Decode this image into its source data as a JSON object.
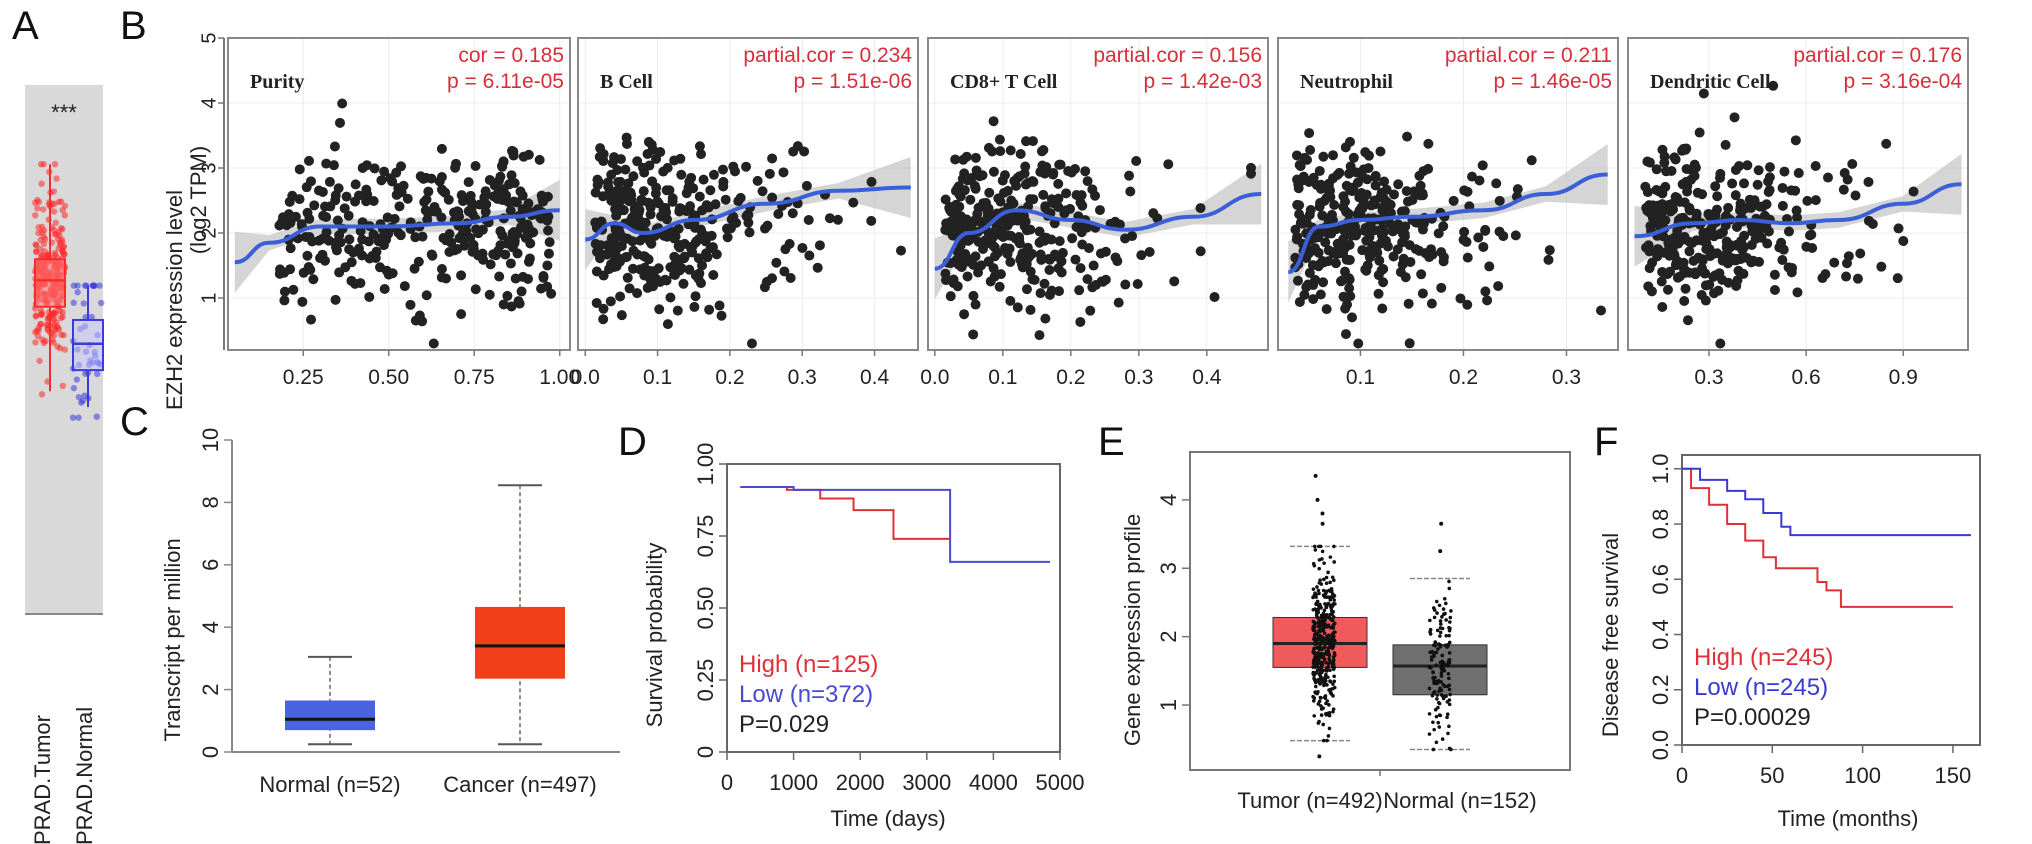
{
  "panel_labels": {
    "A": "A",
    "B": "B",
    "C": "C",
    "D": "D",
    "E": "E",
    "F": "F"
  },
  "chart_data": [
    {
      "id": "A",
      "type": "box",
      "title": "",
      "annotation": "***",
      "categories": [
        "PRAD.Tumor",
        "PRAD.Normal"
      ],
      "colors": {
        "PRAD.Tumor": "#ff2a2a",
        "PRAD.Normal": "#3a3ae0",
        "background": "#d9d9d9"
      },
      "box_stats_relative": [
        {
          "name": "PRAD.Tumor",
          "q1": 0.58,
          "median": 0.63,
          "q3": 0.67,
          "min": 0.42,
          "max": 0.85
        },
        {
          "name": "PRAD.Normal",
          "q1": 0.46,
          "median": 0.51,
          "q3": 0.555,
          "min": 0.39,
          "max": 0.62
        }
      ]
    },
    {
      "id": "B",
      "type": "scatter",
      "ylabel": "EZH2 expression level\n(log2 TPM)",
      "ylabel_line1": "EZH2 expression level",
      "ylabel_line2": "(log2 TPM)",
      "ylim": [
        0.2,
        5.0
      ],
      "yticks": [
        1,
        2,
        3,
        4,
        5
      ],
      "point_color": "#222222",
      "fit_color": "#3a5fd9",
      "ci_color": "#bfbfbf",
      "corr_color": "#d62f3a",
      "facets": [
        {
          "title": "Purity",
          "stat_label": "cor = 0.185",
          "p_label": "p = 6.11e-05",
          "xlim": [
            0.03,
            1.03
          ],
          "xticks": [
            "0.25",
            "0.50",
            "0.75",
            "1.00"
          ],
          "xtick_values": [
            0.25,
            0.5,
            0.75,
            1.0
          ],
          "fit": [
            [
              0.05,
              1.55
            ],
            [
              0.15,
              1.85
            ],
            [
              0.3,
              2.1
            ],
            [
              0.5,
              2.1
            ],
            [
              0.7,
              2.15
            ],
            [
              0.85,
              2.25
            ],
            [
              1.0,
              2.35
            ]
          ]
        },
        {
          "title": "B Cell",
          "stat_label": "partial.cor = 0.234",
          "p_label": "p = 1.51e-06",
          "xlim": [
            -0.01,
            0.46
          ],
          "xticks": [
            "0.0",
            "0.1",
            "0.2",
            "0.3",
            "0.4"
          ],
          "xtick_values": [
            0,
            0.1,
            0.2,
            0.3,
            0.4
          ],
          "fit": [
            [
              0.0,
              1.9
            ],
            [
              0.04,
              2.15
            ],
            [
              0.08,
              2.0
            ],
            [
              0.15,
              2.2
            ],
            [
              0.25,
              2.45
            ],
            [
              0.35,
              2.65
            ],
            [
              0.45,
              2.7
            ]
          ]
        },
        {
          "title": "CD8+ T Cell",
          "stat_label": "partial.cor = 0.156",
          "p_label": "p = 1.42e-03",
          "xlim": [
            -0.01,
            0.49
          ],
          "xticks": [
            "0.0",
            "0.1",
            "0.2",
            "0.3",
            "0.4"
          ],
          "xtick_values": [
            0,
            0.1,
            0.2,
            0.3,
            0.4
          ],
          "fit": [
            [
              0.0,
              1.45
            ],
            [
              0.05,
              2.0
            ],
            [
              0.12,
              2.35
            ],
            [
              0.2,
              2.2
            ],
            [
              0.28,
              2.05
            ],
            [
              0.38,
              2.25
            ],
            [
              0.48,
              2.6
            ]
          ]
        },
        {
          "title": "Neutrophil",
          "stat_label": "partial.cor = 0.211",
          "p_label": "p = 1.46e-05",
          "xlim": [
            0.02,
            0.35
          ],
          "xticks": [
            "0.1",
            "0.2",
            "0.3"
          ],
          "xtick_values": [
            0.1,
            0.2,
            0.3
          ],
          "fit": [
            [
              0.03,
              1.4
            ],
            [
              0.06,
              2.1
            ],
            [
              0.1,
              2.2
            ],
            [
              0.15,
              2.25
            ],
            [
              0.22,
              2.35
            ],
            [
              0.28,
              2.6
            ],
            [
              0.34,
              2.9
            ]
          ]
        },
        {
          "title": "Dendritic Cell",
          "stat_label": "partial.cor = 0.176",
          "p_label": "p = 3.16e-04",
          "xlim": [
            0.05,
            1.1
          ],
          "xticks": [
            "0.3",
            "0.6",
            "0.9"
          ],
          "xtick_values": [
            0.3,
            0.6,
            0.9
          ],
          "fit": [
            [
              0.07,
              1.95
            ],
            [
              0.25,
              2.15
            ],
            [
              0.4,
              2.2
            ],
            [
              0.55,
              2.15
            ],
            [
              0.7,
              2.2
            ],
            [
              0.9,
              2.45
            ],
            [
              1.08,
              2.75
            ]
          ]
        }
      ]
    },
    {
      "id": "C",
      "type": "box",
      "ylabel": "Transcript per million",
      "ylim": [
        0,
        10
      ],
      "yticks": [
        0,
        2,
        4,
        6,
        8,
        10
      ],
      "categories": [
        "Normal (n=52)",
        "Cancer (n=497)"
      ],
      "boxes": [
        {
          "name": "Normal (n=52)",
          "min": 0.25,
          "q1": 0.7,
          "median": 1.05,
          "q3": 1.65,
          "max": 3.05,
          "color": "#4a64e0"
        },
        {
          "name": "Cancer (n=497)",
          "min": 0.25,
          "q1": 2.35,
          "median": 3.4,
          "q3": 4.65,
          "max": 8.55,
          "color": "#f0401a"
        }
      ]
    },
    {
      "id": "D",
      "type": "line",
      "subtype": "kaplan-meier",
      "xlabel": "Time (days)",
      "ylabel": "Survival probability",
      "xlim": [
        0,
        5000
      ],
      "ylim": [
        0,
        1
      ],
      "xticks": [
        0,
        1000,
        2000,
        3000,
        4000,
        5000
      ],
      "yticks": [
        "0",
        "0.25",
        "0.50",
        "0.75",
        "1.00"
      ],
      "ytick_values": [
        0,
        0.25,
        0.5,
        0.75,
        1.0
      ],
      "series": [
        {
          "name": "High (n=125)",
          "color": "#e0303a",
          "steps": [
            [
              200,
              0.92
            ],
            [
              900,
              0.91
            ],
            [
              1400,
              0.88
            ],
            [
              1900,
              0.84
            ],
            [
              2500,
              0.74
            ],
            [
              3350,
              0.74
            ]
          ]
        },
        {
          "name": "Low (n=372)",
          "color": "#4a4ad0",
          "steps": [
            [
              200,
              0.92
            ],
            [
              1000,
              0.91
            ],
            [
              3350,
              0.91
            ],
            [
              3350,
              0.66
            ],
            [
              4850,
              0.66
            ]
          ]
        }
      ],
      "legend": [
        {
          "label": "High (n=125)",
          "color": "#e0303a"
        },
        {
          "label": "Low (n=372)",
          "color": "#4a4ad0"
        },
        {
          "label": "P=0.029",
          "color": "#222222"
        }
      ],
      "legend_position": "bottom-left"
    },
    {
      "id": "E",
      "type": "box",
      "ylabel": "Gene expression profile",
      "ylim": [
        0.05,
        4.7
      ],
      "yticks": [
        1,
        2,
        3,
        4
      ],
      "categories": [
        "Tumor (n=492)",
        "Normal (n=152)"
      ],
      "boxes": [
        {
          "name": "Tumor (n=492)",
          "min": 0.48,
          "q1": 1.55,
          "median": 1.9,
          "q3": 2.28,
          "max": 3.32,
          "color": "#f05a5a",
          "outliers": [
            4.35,
            4.0,
            3.8,
            3.65,
            0.25
          ]
        },
        {
          "name": "Normal (n=152)",
          "min": 0.35,
          "q1": 1.15,
          "median": 1.57,
          "q3": 1.88,
          "max": 2.85,
          "color": "#707070",
          "outliers": [
            3.65,
            3.25
          ]
        }
      ]
    },
    {
      "id": "F",
      "type": "line",
      "subtype": "kaplan-meier",
      "xlabel": "Time (months)",
      "ylabel": "Disease free survival",
      "xlim": [
        0,
        165
      ],
      "ylim": [
        0,
        1.05
      ],
      "xticks": [
        0,
        50,
        100,
        150
      ],
      "yticks": [
        "0.0",
        "0.2",
        "0.4",
        "0.6",
        "0.8",
        "1.0"
      ],
      "ytick_values": [
        0,
        0.2,
        0.4,
        0.6,
        0.8,
        1.0
      ],
      "series": [
        {
          "name": "High (n=245)",
          "color": "#e0303a",
          "steps": [
            [
              0,
              1.0
            ],
            [
              5,
              0.93
            ],
            [
              15,
              0.87
            ],
            [
              25,
              0.8
            ],
            [
              35,
              0.74
            ],
            [
              45,
              0.68
            ],
            [
              52,
              0.64
            ],
            [
              68,
              0.64
            ],
            [
              75,
              0.59
            ],
            [
              80,
              0.56
            ],
            [
              88,
              0.55
            ],
            [
              88,
              0.5
            ],
            [
              150,
              0.5
            ]
          ]
        },
        {
          "name": "Low (n=245)",
          "color": "#3a3ad0",
          "steps": [
            [
              0,
              1.0
            ],
            [
              10,
              0.96
            ],
            [
              25,
              0.92
            ],
            [
              35,
              0.89
            ],
            [
              45,
              0.84
            ],
            [
              55,
              0.79
            ],
            [
              60,
              0.76
            ],
            [
              160,
              0.76
            ]
          ]
        }
      ],
      "legend": [
        {
          "label": "High (n=245)",
          "color": "#e0303a"
        },
        {
          "label": "Low (n=245)",
          "color": "#3a3ad0"
        },
        {
          "label": "P=0.00029",
          "color": "#222222"
        }
      ],
      "legend_position": "bottom-left"
    }
  ]
}
